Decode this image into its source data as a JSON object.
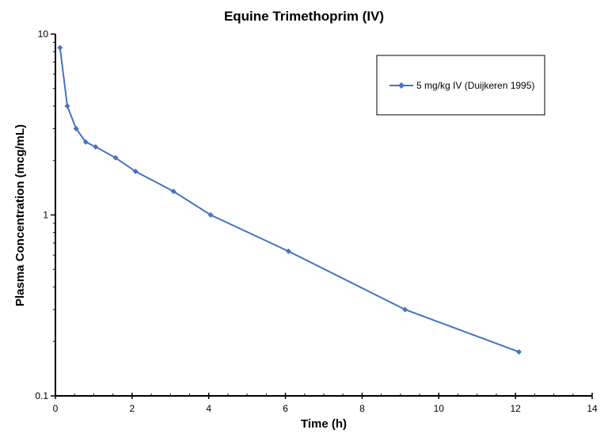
{
  "chart_data": {
    "type": "line",
    "title": "Equine Trimethoprim (IV)",
    "xlabel": "Time (h)",
    "ylabel": "Plasma Concentration (mcg/mL)",
    "xlim": [
      0,
      14
    ],
    "ylim": [
      0.1,
      10
    ],
    "yscale": "log",
    "xticks": [
      "0",
      "2",
      "4",
      "6",
      "8",
      "10",
      "12",
      "14"
    ],
    "yticks": [
      "0.1",
      "1",
      "10"
    ],
    "grid": false,
    "legend_position": "top-right",
    "series": [
      {
        "name": "5 mg/kg IV (Duijkeren 1995)",
        "color": "#4472C4",
        "x": [
          0.12,
          0.31,
          0.54,
          0.79,
          1.05,
          1.57,
          2.09,
          3.08,
          4.05,
          6.08,
          9.12,
          12.09
        ],
        "y": [
          8.4,
          4.0,
          3.0,
          2.53,
          2.38,
          2.07,
          1.74,
          1.35,
          1.0,
          0.63,
          0.3,
          0.175
        ]
      }
    ]
  }
}
